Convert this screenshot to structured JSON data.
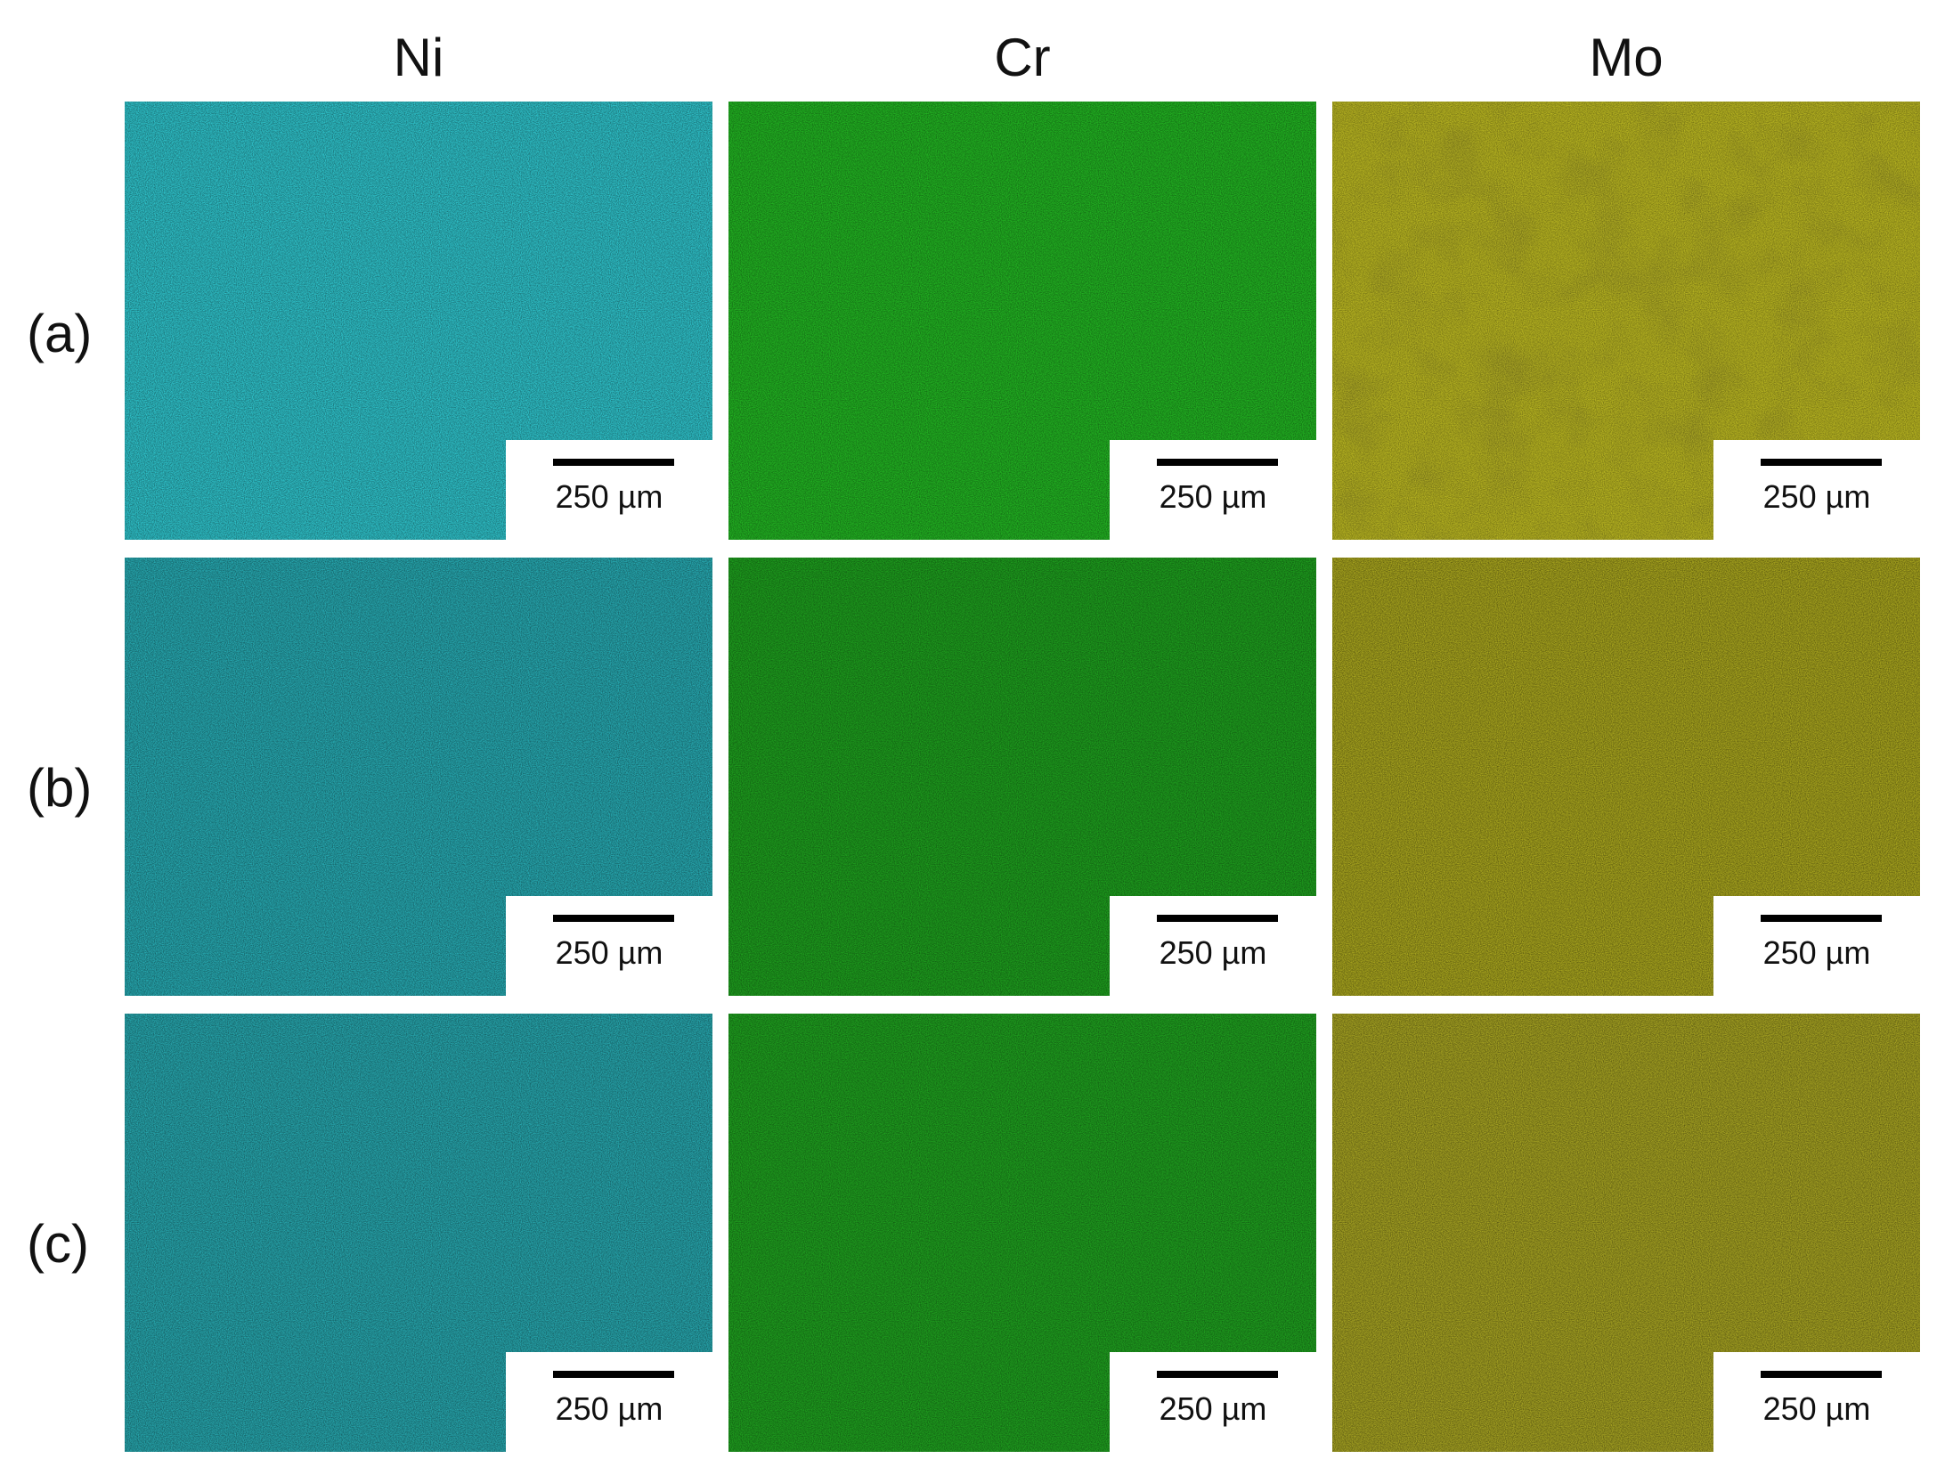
{
  "columns": [
    {
      "label": "Ni",
      "color": "#2fc4cc"
    },
    {
      "label": "Cr",
      "color": "#22b322"
    },
    {
      "label": "Mo",
      "color": "#bdbb1e"
    }
  ],
  "rows": [
    {
      "label": "(a)"
    },
    {
      "label": "(b)"
    },
    {
      "label": "(c)"
    }
  ],
  "scale_bar": {
    "label": "250 µm"
  },
  "icons": {
    "map_texture": "noise-texture-icon"
  }
}
